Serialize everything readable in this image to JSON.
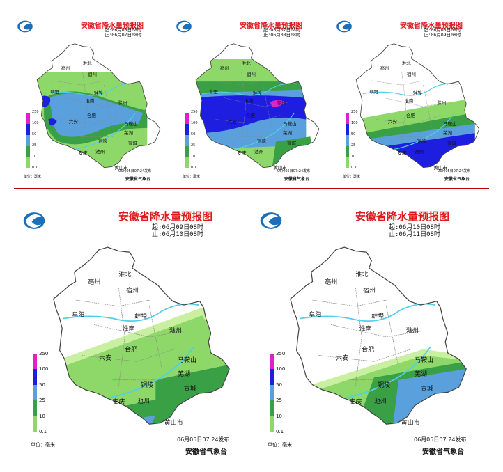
{
  "colors": {
    "title": "#e0191e",
    "scale": [
      "#c8f0a0",
      "#8ed86a",
      "#3aa046",
      "#5aa0dc",
      "#1e1ee0",
      "#e020c8"
    ],
    "river": "#4fd0e8",
    "border": "#555555"
  },
  "legend_ticks": [
    "250",
    "100",
    "50",
    "25",
    "10",
    "0.1"
  ],
  "legend_unit": "单位：毫米",
  "agency": "安徽省气象台",
  "issued": "06月05日07:24发布",
  "city_labels": {
    "huaibei": "淮北",
    "bozhou": "亳州",
    "suzhou": "宿州",
    "fuyang": "阜阳",
    "bengbu": "蚌埠",
    "huainan": "淮南",
    "chuzhou": "滁州",
    "luan": "六安",
    "hefei": "合肥",
    "maanshan": "马鞍山",
    "wuhu": "芜湖",
    "tongling": "铜陵",
    "xuancheng": "宣城",
    "anqing": "安庆",
    "chizhou": "池州",
    "huangshan": "黄山市"
  },
  "panels": [
    {
      "title": "安徽省降水量预报图",
      "start": "起:06月06日08时",
      "end": "止:06月07日08时"
    },
    {
      "title": "安徽省降水量预报图",
      "start": "起:06月07日08时",
      "end": "止:06月08日08时"
    },
    {
      "title": "安徽省降水量预报图",
      "start": "起:06月08日08时",
      "end": "止:06月09日08时"
    },
    {
      "title": "安徽省降水量预报图",
      "start": "起:06月09日08时",
      "end": "止:06月10日08时"
    },
    {
      "title": "安徽省降水量预报图",
      "start": "起:06月10日08时",
      "end": "止:06月11日08时"
    }
  ]
}
